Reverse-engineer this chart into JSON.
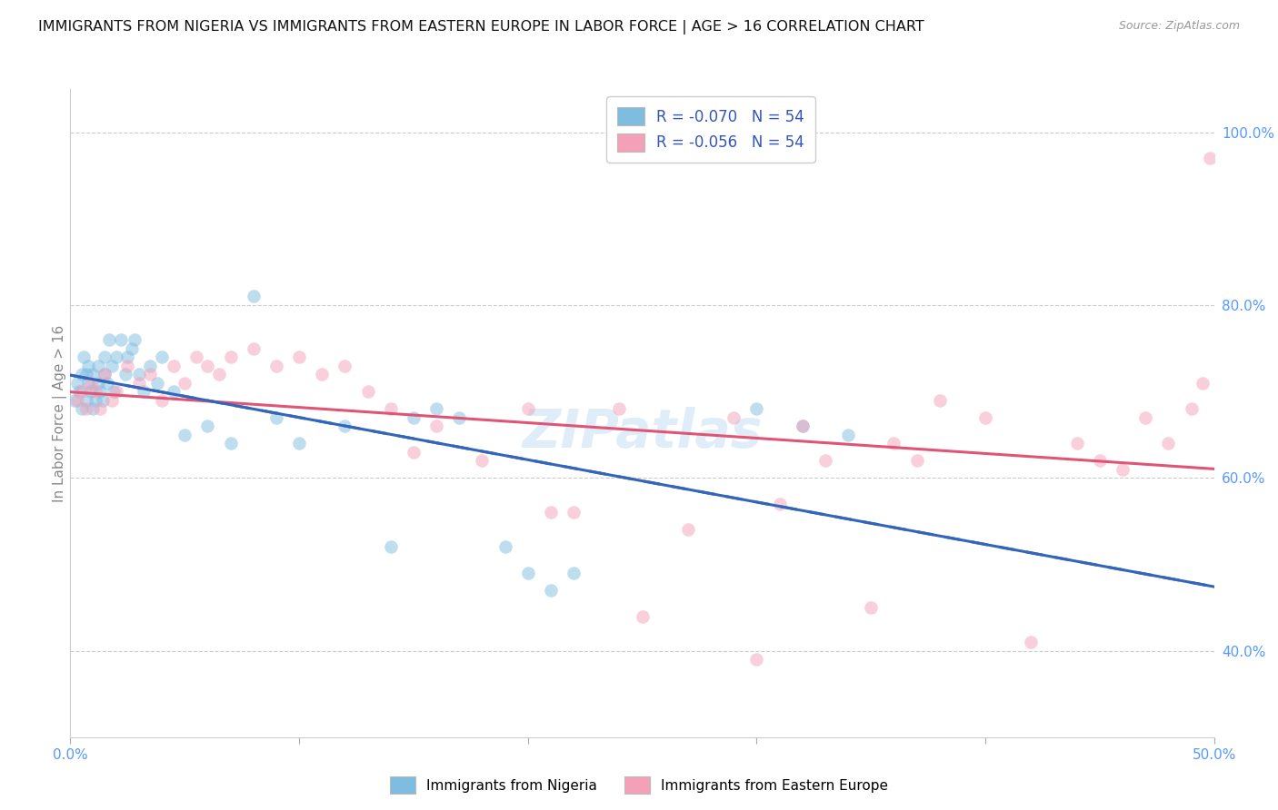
{
  "title": "IMMIGRANTS FROM NIGERIA VS IMMIGRANTS FROM EASTERN EUROPE IN LABOR FORCE | AGE > 16 CORRELATION CHART",
  "source": "Source: ZipAtlas.com",
  "ylabel": "In Labor Force | Age > 16",
  "watermark": "ZIPatlas",
  "nigeria_color": "#7fbde0",
  "eastern_europe_color": "#f4a0b8",
  "nigeria_trend_color": "#3366bb",
  "eastern_europe_trend_color": "#e05575",
  "bg_color": "#ffffff",
  "grid_color": "#cccccc",
  "axis_label_color": "#5599ff",
  "title_color": "#111111",
  "xlim": [
    0.0,
    0.5
  ],
  "ylim": [
    0.3,
    1.05
  ],
  "nigeria_scatter_x": [
    0.002,
    0.003,
    0.004,
    0.005,
    0.005,
    0.006,
    0.007,
    0.007,
    0.008,
    0.008,
    0.009,
    0.01,
    0.01,
    0.011,
    0.012,
    0.012,
    0.013,
    0.014,
    0.015,
    0.015,
    0.016,
    0.017,
    0.018,
    0.019,
    0.02,
    0.022,
    0.024,
    0.025,
    0.027,
    0.028,
    0.03,
    0.032,
    0.035,
    0.038,
    0.04,
    0.045,
    0.05,
    0.06,
    0.07,
    0.08,
    0.09,
    0.1,
    0.12,
    0.14,
    0.15,
    0.16,
    0.17,
    0.19,
    0.2,
    0.21,
    0.22,
    0.3,
    0.32,
    0.34
  ],
  "nigeria_scatter_y": [
    0.69,
    0.71,
    0.7,
    0.68,
    0.72,
    0.74,
    0.69,
    0.72,
    0.71,
    0.73,
    0.7,
    0.68,
    0.72,
    0.69,
    0.71,
    0.73,
    0.7,
    0.69,
    0.72,
    0.74,
    0.71,
    0.76,
    0.73,
    0.7,
    0.74,
    0.76,
    0.72,
    0.74,
    0.75,
    0.76,
    0.72,
    0.7,
    0.73,
    0.71,
    0.74,
    0.7,
    0.65,
    0.66,
    0.64,
    0.81,
    0.67,
    0.64,
    0.66,
    0.52,
    0.67,
    0.68,
    0.67,
    0.52,
    0.49,
    0.47,
    0.49,
    0.68,
    0.66,
    0.65
  ],
  "eastern_europe_scatter_x": [
    0.003,
    0.005,
    0.007,
    0.009,
    0.011,
    0.013,
    0.015,
    0.018,
    0.02,
    0.025,
    0.03,
    0.035,
    0.04,
    0.045,
    0.05,
    0.055,
    0.06,
    0.065,
    0.07,
    0.08,
    0.09,
    0.1,
    0.11,
    0.12,
    0.13,
    0.14,
    0.15,
    0.16,
    0.18,
    0.2,
    0.21,
    0.22,
    0.24,
    0.25,
    0.27,
    0.29,
    0.3,
    0.31,
    0.32,
    0.33,
    0.35,
    0.36,
    0.37,
    0.38,
    0.4,
    0.42,
    0.44,
    0.45,
    0.46,
    0.47,
    0.48,
    0.49,
    0.495,
    0.498
  ],
  "eastern_europe_scatter_y": [
    0.69,
    0.7,
    0.68,
    0.71,
    0.7,
    0.68,
    0.72,
    0.69,
    0.7,
    0.73,
    0.71,
    0.72,
    0.69,
    0.73,
    0.71,
    0.74,
    0.73,
    0.72,
    0.74,
    0.75,
    0.73,
    0.74,
    0.72,
    0.73,
    0.7,
    0.68,
    0.63,
    0.66,
    0.62,
    0.68,
    0.56,
    0.56,
    0.68,
    0.44,
    0.54,
    0.67,
    0.39,
    0.57,
    0.66,
    0.62,
    0.45,
    0.64,
    0.62,
    0.69,
    0.67,
    0.41,
    0.64,
    0.62,
    0.61,
    0.67,
    0.64,
    0.68,
    0.71,
    0.97
  ],
  "nigeria_R": -0.07,
  "eastern_europe_R": -0.056,
  "marker_size": 110,
  "marker_alpha": 0.5,
  "grid_yticks": [
    0.4,
    0.6,
    0.8,
    1.0
  ],
  "yticklabels_right": [
    "40.0%",
    "60.0%",
    "80.0%",
    "100.0%"
  ]
}
